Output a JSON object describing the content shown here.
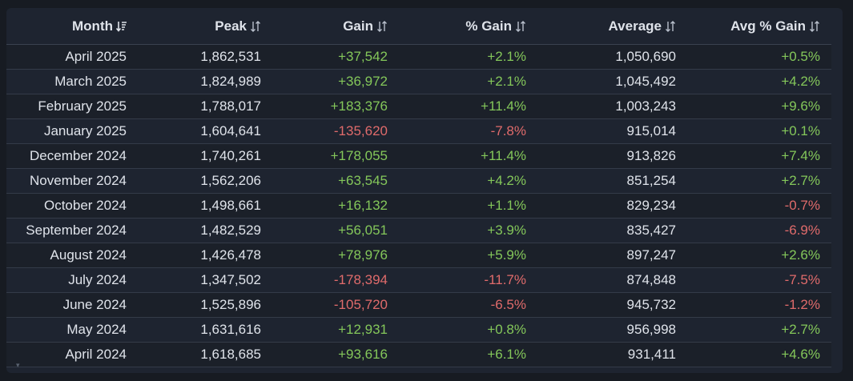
{
  "table": {
    "headers": {
      "month": "Month",
      "peak": "Peak",
      "gain": "Gain",
      "pct_gain": "% Gain",
      "average": "Average",
      "avg_pct_gain": "Avg % Gain"
    },
    "sorted_column": "month",
    "rows": [
      {
        "month": "April 2025",
        "peak": "1,862,531",
        "gain": "+37,542",
        "pct_gain": "+2.1%",
        "average": "1,050,690",
        "avg_pct_gain": "+0.5%"
      },
      {
        "month": "March 2025",
        "peak": "1,824,989",
        "gain": "+36,972",
        "pct_gain": "+2.1%",
        "average": "1,045,492",
        "avg_pct_gain": "+4.2%"
      },
      {
        "month": "February 2025",
        "peak": "1,788,017",
        "gain": "+183,376",
        "pct_gain": "+11.4%",
        "average": "1,003,243",
        "avg_pct_gain": "+9.6%"
      },
      {
        "month": "January 2025",
        "peak": "1,604,641",
        "gain": "-135,620",
        "pct_gain": "-7.8%",
        "average": "915,014",
        "avg_pct_gain": "+0.1%"
      },
      {
        "month": "December 2024",
        "peak": "1,740,261",
        "gain": "+178,055",
        "pct_gain": "+11.4%",
        "average": "913,826",
        "avg_pct_gain": "+7.4%"
      },
      {
        "month": "November 2024",
        "peak": "1,562,206",
        "gain": "+63,545",
        "pct_gain": "+4.2%",
        "average": "851,254",
        "avg_pct_gain": "+2.7%"
      },
      {
        "month": "October 2024",
        "peak": "1,498,661",
        "gain": "+16,132",
        "pct_gain": "+1.1%",
        "average": "829,234",
        "avg_pct_gain": "-0.7%"
      },
      {
        "month": "September 2024",
        "peak": "1,482,529",
        "gain": "+56,051",
        "pct_gain": "+3.9%",
        "average": "835,427",
        "avg_pct_gain": "-6.9%"
      },
      {
        "month": "August 2024",
        "peak": "1,426,478",
        "gain": "+78,976",
        "pct_gain": "+5.9%",
        "average": "897,247",
        "avg_pct_gain": "+2.6%"
      },
      {
        "month": "July 2024",
        "peak": "1,347,502",
        "gain": "-178,394",
        "pct_gain": "-11.7%",
        "average": "874,848",
        "avg_pct_gain": "-7.5%"
      },
      {
        "month": "June 2024",
        "peak": "1,525,896",
        "gain": "-105,720",
        "pct_gain": "-6.5%",
        "average": "945,732",
        "avg_pct_gain": "-1.2%"
      },
      {
        "month": "May 2024",
        "peak": "1,631,616",
        "gain": "+12,931",
        "pct_gain": "+0.8%",
        "average": "956,998",
        "avg_pct_gain": "+2.7%"
      },
      {
        "month": "April 2024",
        "peak": "1,618,685",
        "gain": "+93,616",
        "pct_gain": "+6.1%",
        "average": "931,411",
        "avg_pct_gain": "+4.6%"
      }
    ]
  },
  "colors": {
    "positive": "#84c75a",
    "negative": "#e06b6b",
    "text": "#dfe3ea",
    "background": "#1e2430"
  },
  "icons": {
    "sort_active": "sort-descending-icon",
    "sort_inactive": "sort-toggle-icon",
    "corner": "expand-corner-icon"
  }
}
